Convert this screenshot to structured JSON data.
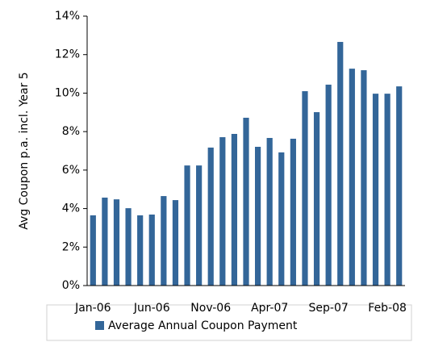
{
  "chart_data": {
    "type": "bar",
    "y_label": "Avg Coupon p.a. incl. Year 5",
    "categories": [
      "Jan-06",
      null,
      null,
      null,
      null,
      "Jun-06",
      null,
      null,
      null,
      null,
      "Nov-06",
      null,
      null,
      null,
      null,
      "Apr-07",
      null,
      null,
      null,
      null,
      "Sep-07",
      null,
      null,
      null,
      null,
      "Feb-08",
      null
    ],
    "series": [
      {
        "name": "Average Annual Coupon Payment",
        "color": "#336699",
        "values": [
          3.65,
          4.57,
          4.48,
          4.02,
          3.65,
          3.69,
          4.65,
          4.44,
          6.24,
          6.24,
          7.17,
          7.71,
          7.88,
          8.72,
          7.21,
          7.67,
          6.92,
          7.63,
          10.1,
          9.01,
          10.44,
          12.66,
          11.27,
          11.19,
          9.97,
          9.97,
          10.35
        ]
      }
    ],
    "ylim": [
      0,
      14
    ],
    "yticks": [
      {
        "value": 0,
        "label": "0%"
      },
      {
        "value": 2,
        "label": "2%"
      },
      {
        "value": 4,
        "label": "4%"
      },
      {
        "value": 6,
        "label": "6%"
      },
      {
        "value": 8,
        "label": "8%"
      },
      {
        "value": 10,
        "label": "10%"
      },
      {
        "value": 12,
        "label": "12%"
      },
      {
        "value": 14,
        "label": "14%"
      }
    ],
    "grid": false,
    "legend": "bottom"
  }
}
